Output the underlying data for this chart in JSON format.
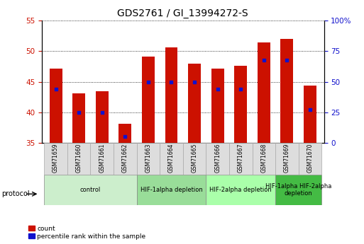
{
  "title": "GDS2761 / GI_13994272-S",
  "samples": [
    "GSM71659",
    "GSM71660",
    "GSM71661",
    "GSM71662",
    "GSM71663",
    "GSM71664",
    "GSM71665",
    "GSM71666",
    "GSM71667",
    "GSM71668",
    "GSM71669",
    "GSM71670"
  ],
  "counts": [
    47.2,
    43.1,
    43.4,
    38.1,
    49.1,
    50.6,
    48.0,
    47.1,
    47.6,
    51.5,
    52.0,
    44.4
  ],
  "percentile_ranks_pct": [
    44,
    25,
    25,
    5,
    50,
    50,
    50,
    44,
    44,
    68,
    68,
    27
  ],
  "ylim_left": [
    35,
    55
  ],
  "ylim_right": [
    0,
    100
  ],
  "yticks_left": [
    35,
    40,
    45,
    50,
    55
  ],
  "ytick_labels_left": [
    "35",
    "40",
    "45",
    "50",
    "55"
  ],
  "yticks_right": [
    0,
    25,
    50,
    75,
    100
  ],
  "ytick_labels_right": [
    "0",
    "25",
    "50",
    "75",
    "100%"
  ],
  "bar_color": "#cc1100",
  "dot_color": "#1111cc",
  "bar_width": 0.55,
  "groups": [
    {
      "label": "control",
      "start": 0,
      "end": 4,
      "color": "#cceecc"
    },
    {
      "label": "HIF-1alpha depletion",
      "start": 4,
      "end": 7,
      "color": "#99dd99"
    },
    {
      "label": "HIF-2alpha depletion",
      "start": 7,
      "end": 10,
      "color": "#aaffaa"
    },
    {
      "label": "HIF-1alpha HIF-2alpha\ndepletion",
      "start": 10,
      "end": 12,
      "color": "#44bb44"
    }
  ],
  "legend_labels": [
    "count",
    "percentile rank within the sample"
  ],
  "protocol_label": "protocol",
  "left_axis_color": "#cc1100",
  "right_axis_color": "#1111cc",
  "title_fontsize": 10,
  "tick_label_fontsize": 7.5,
  "sample_fontsize": 5.5,
  "group_fontsize": 6.0,
  "legend_fontsize": 6.5,
  "protocol_fontsize": 7
}
